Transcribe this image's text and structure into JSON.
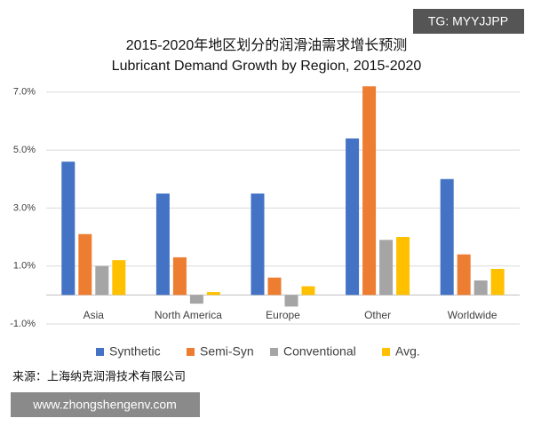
{
  "chart_data": {
    "type": "bar",
    "title": "2015-2020年地区划分的润滑油需求增长预测",
    "subtitle": "Lubricant Demand Growth by Region, 2015-2020",
    "categories": [
      "Asia",
      "North America",
      "Europe",
      "Other",
      "Worldwide"
    ],
    "series": [
      {
        "name": "Synthetic",
        "color": "#4472c4",
        "values": [
          4.6,
          3.5,
          3.5,
          5.4,
          4.0
        ]
      },
      {
        "name": "Semi-Syn",
        "color": "#ed7d31",
        "values": [
          2.1,
          1.3,
          0.6,
          7.2,
          1.4
        ]
      },
      {
        "name": "Conventional",
        "color": "#a5a5a5",
        "values": [
          1.0,
          -0.3,
          -0.4,
          1.9,
          0.5
        ]
      },
      {
        "name": "Avg.",
        "color": "#ffc000",
        "values": [
          1.2,
          0.1,
          0.3,
          2.0,
          0.9
        ]
      }
    ],
    "ylim": [
      -1.0,
      7.3
    ],
    "yticks": [
      {
        "value": -1.0,
        "label": "-1.0%"
      },
      {
        "value": 1.0,
        "label": "1.0%"
      },
      {
        "value": 3.0,
        "label": "3.0%"
      },
      {
        "value": 5.0,
        "label": "5.0%"
      },
      {
        "value": 7.0,
        "label": "7.0%"
      }
    ],
    "grid": true,
    "legend": "bottom",
    "source": "来源：上海纳克润滑技术有限公司",
    "watermarks": [
      "TG: MYYJJPP",
      "www.zhongshengenv.com"
    ]
  }
}
